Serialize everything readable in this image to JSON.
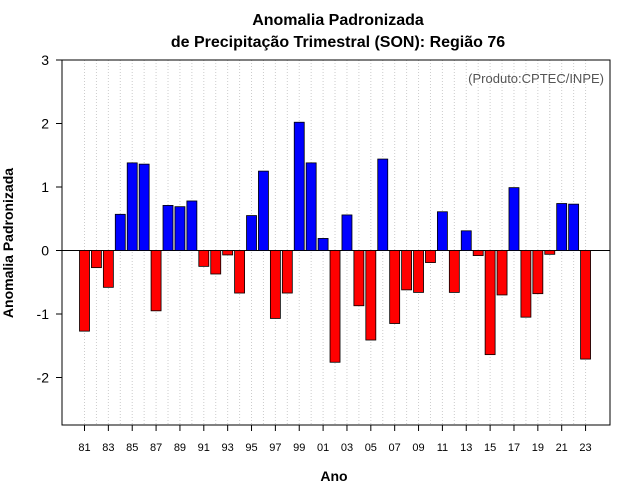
{
  "chart_data": {
    "type": "bar",
    "title": "Anomalia Padronizada",
    "subtitle": "de Precipitação Trimestral (SON): Região 76",
    "xlabel": "Ano",
    "ylabel": "Anomalia Padronizada",
    "credit": "(Produto:CPTEC/INPE)",
    "ylim": [
      -2.75,
      3
    ],
    "yticks": [
      -2,
      -1,
      0,
      1,
      2,
      3
    ],
    "grid": "vertical dotted",
    "categories": [
      "81",
      "82",
      "83",
      "84",
      "85",
      "86",
      "87",
      "88",
      "89",
      "90",
      "91",
      "92",
      "93",
      "94",
      "95",
      "96",
      "97",
      "98",
      "99",
      "00",
      "01",
      "02",
      "03",
      "04",
      "05",
      "06",
      "07",
      "08",
      "09",
      "10",
      "11",
      "12",
      "13",
      "14",
      "15",
      "16",
      "17",
      "18",
      "19",
      "20",
      "21",
      "22",
      "23"
    ],
    "xtick_labels": [
      "81",
      "83",
      "85",
      "87",
      "89",
      "91",
      "93",
      "95",
      "97",
      "99",
      "01",
      "03",
      "05",
      "07",
      "09",
      "11",
      "13",
      "15",
      "17",
      "19",
      "21",
      "23"
    ],
    "values": [
      -1.27,
      -0.27,
      -0.58,
      0.57,
      1.38,
      1.36,
      -0.95,
      0.71,
      0.69,
      0.78,
      -0.25,
      -0.37,
      -0.07,
      -0.67,
      0.55,
      1.25,
      -1.07,
      -0.67,
      2.02,
      1.38,
      0.19,
      -1.76,
      0.56,
      -0.87,
      -1.41,
      1.44,
      -1.15,
      -0.62,
      -0.66,
      -0.19,
      0.61,
      -0.66,
      0.31,
      -0.08,
      -1.64,
      -0.7,
      0.99,
      -1.05,
      -0.68,
      -0.06,
      0.74,
      0.73,
      -1.71
    ],
    "colors": {
      "positive": "#0000ff",
      "negative": "#ff0000"
    }
  }
}
